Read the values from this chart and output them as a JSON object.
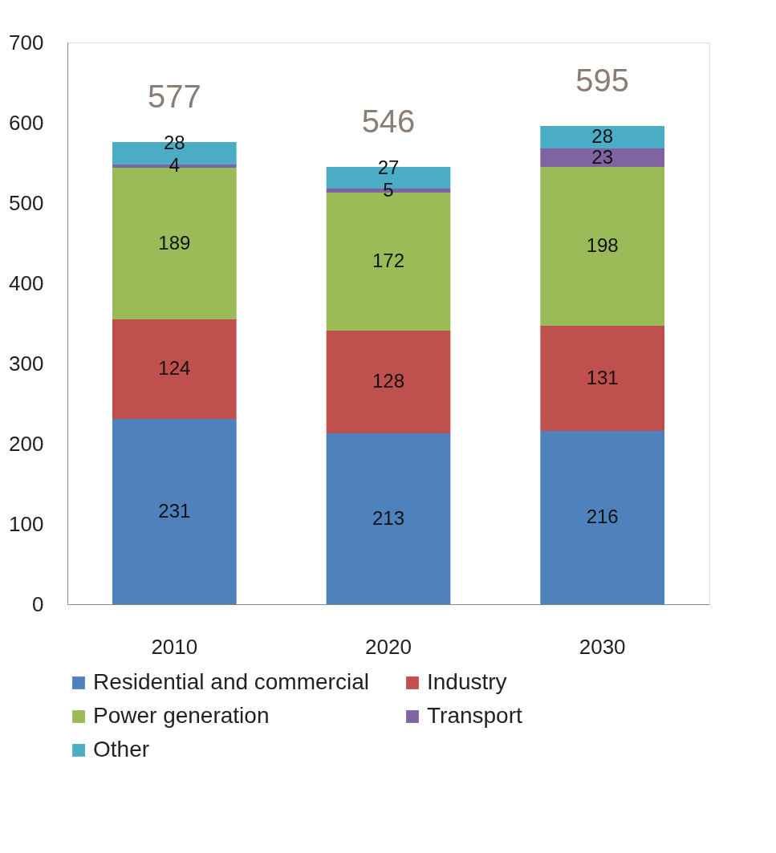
{
  "chart_data": {
    "type": "bar",
    "stacked": true,
    "categories": [
      "2010",
      "2020",
      "2030"
    ],
    "series": [
      {
        "name": "Residential and commercial",
        "color": "#4f81bd",
        "values": [
          231,
          213,
          216
        ]
      },
      {
        "name": "Industry",
        "color": "#c0504d",
        "values": [
          124,
          128,
          131
        ]
      },
      {
        "name": "Power generation",
        "color": "#9bbb59",
        "values": [
          189,
          172,
          198
        ]
      },
      {
        "name": "Transport",
        "color": "#8064a2",
        "values": [
          4,
          5,
          23
        ]
      },
      {
        "name": "Other",
        "color": "#4bacc6",
        "values": [
          28,
          27,
          28
        ]
      }
    ],
    "totals": [
      "577",
      "546",
      "595"
    ],
    "ylim": [
      0,
      700
    ],
    "yticks": [
      0,
      100,
      200,
      300,
      400,
      500,
      600,
      700
    ],
    "grid": false,
    "legend": "bottom",
    "data_labels": true
  }
}
